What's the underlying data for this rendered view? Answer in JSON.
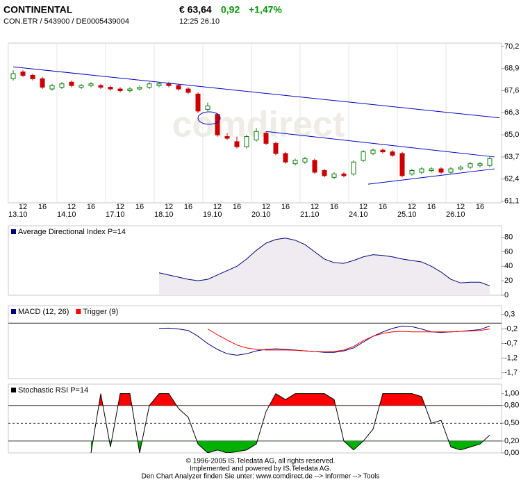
{
  "header": {
    "name": "CONTINENTAL",
    "ids": "CON.ETR / 543900 / DE0005439004",
    "price": "€ 63,64",
    "change": "0,92",
    "change_pct": "+1,47%",
    "time": "12:25  26.10"
  },
  "watermark": "comdirect",
  "footer": [
    "© 1996-2005 IS.Teledata AG, all rights reserved.",
    "Implemented and powered by IS.Teledata AG.",
    "Den Chart Analyzer finden Sie unter: www.comdirect.de --> Informer --> Tools"
  ],
  "chart_data": [
    {
      "type": "candlestick",
      "up_color": "#008000",
      "down_color": "#cc0000",
      "grid": false,
      "ylim": [
        61.0,
        70.4
      ],
      "yticks": [
        {
          "value": 70.2,
          "label": "70,2"
        },
        {
          "value": 68.9,
          "label": "68,9"
        },
        {
          "value": 67.6,
          "label": "67,6"
        },
        {
          "value": 66.3,
          "label": "66,3"
        },
        {
          "value": 65.0,
          "label": "65,0"
        },
        {
          "value": 63.7,
          "label": "63,7"
        },
        {
          "value": 62.4,
          "label": "62,4"
        },
        {
          "value": 61.1,
          "label": "61,1"
        }
      ],
      "xticks": [
        {
          "value": 1,
          "label": "12"
        },
        {
          "value": 3,
          "label": "16"
        },
        {
          "value": 6,
          "label": "12"
        },
        {
          "value": 8,
          "label": "16"
        },
        {
          "value": 11,
          "label": "12"
        },
        {
          "value": 13,
          "label": "16"
        },
        {
          "value": 16,
          "label": "12"
        },
        {
          "value": 18,
          "label": "16"
        },
        {
          "value": 21,
          "label": "12"
        },
        {
          "value": 23,
          "label": "16"
        },
        {
          "value": 26,
          "label": "12"
        },
        {
          "value": 28,
          "label": "16"
        },
        {
          "value": 31,
          "label": "12"
        },
        {
          "value": 33,
          "label": "16"
        },
        {
          "value": 36,
          "label": "12"
        },
        {
          "value": 38,
          "label": "16"
        },
        {
          "value": 41,
          "label": "12"
        },
        {
          "value": 43,
          "label": "16"
        },
        {
          "value": 46,
          "label": "12"
        },
        {
          "value": 48,
          "label": "16"
        }
      ],
      "date_ticks": [
        {
          "value": -0.5,
          "label": "13.10"
        },
        {
          "value": 4.5,
          "label": "14.10"
        },
        {
          "value": 9.5,
          "label": "17.10"
        },
        {
          "value": 14.5,
          "label": "18.10"
        },
        {
          "value": 19.5,
          "label": "19.10"
        },
        {
          "value": 24.5,
          "label": "20.10"
        },
        {
          "value": 29.5,
          "label": "21.10"
        },
        {
          "value": 34.5,
          "label": "24.10"
        },
        {
          "value": 39.5,
          "label": "25.10"
        },
        {
          "value": 44.5,
          "label": "26.10"
        }
      ],
      "open": [
        68.3,
        68.7,
        68.5,
        68.3,
        67.7,
        67.8,
        68.1,
        67.8,
        67.9,
        67.9,
        67.8,
        67.7,
        67.6,
        67.7,
        67.8,
        67.9,
        68.0,
        67.9,
        67.7,
        67.4,
        66.5,
        66.2,
        64.9,
        64.6,
        64.3,
        64.7,
        65.1,
        64.5,
        63.9,
        63.3,
        63.4,
        63.5,
        62.9,
        62.5,
        62.7,
        62.7,
        63.5,
        63.9,
        64.1,
        64.0,
        63.9,
        62.7,
        62.8,
        62.9,
        63.0,
        62.8,
        63.0,
        63.1,
        63.2,
        63.2
      ],
      "high": [
        68.8,
        68.8,
        68.6,
        68.4,
        68.0,
        68.1,
        68.2,
        68.0,
        68.1,
        68.0,
        67.9,
        67.8,
        67.8,
        67.9,
        68.1,
        68.1,
        68.1,
        68.0,
        67.8,
        67.5,
        66.9,
        66.3,
        65.1,
        64.9,
        65.0,
        65.4,
        65.2,
        64.6,
        64.0,
        63.6,
        63.7,
        63.6,
        63.0,
        62.8,
        62.8,
        63.5,
        64.1,
        64.2,
        64.2,
        64.1,
        64.0,
        63.0,
        63.1,
        63.1,
        63.1,
        63.1,
        63.2,
        63.4,
        63.4,
        63.7
      ],
      "low": [
        68.2,
        68.4,
        68.2,
        67.7,
        67.6,
        67.7,
        67.8,
        67.7,
        67.8,
        67.7,
        67.6,
        67.5,
        67.5,
        67.6,
        67.7,
        67.8,
        67.8,
        67.6,
        67.4,
        66.3,
        66.4,
        64.9,
        64.7,
        64.2,
        64.2,
        64.6,
        64.4,
        63.8,
        63.3,
        63.2,
        63.3,
        62.7,
        62.5,
        62.4,
        62.5,
        62.6,
        63.4,
        63.8,
        63.9,
        63.7,
        62.5,
        62.6,
        62.7,
        62.8,
        62.7,
        62.7,
        62.9,
        63.0,
        63.1,
        63.1
      ],
      "close": [
        68.6,
        68.5,
        68.3,
        67.8,
        67.9,
        68.0,
        67.9,
        67.9,
        68.0,
        67.8,
        67.7,
        67.6,
        67.7,
        67.8,
        68.0,
        68.0,
        67.9,
        67.7,
        67.5,
        66.4,
        66.7,
        65.0,
        64.8,
        64.3,
        64.9,
        65.2,
        64.5,
        63.9,
        63.4,
        63.5,
        63.6,
        62.8,
        62.6,
        62.7,
        62.6,
        63.4,
        64.0,
        64.1,
        64.0,
        63.8,
        62.6,
        62.9,
        63.0,
        63.0,
        62.8,
        63.0,
        63.1,
        63.3,
        63.3,
        63.6
      ],
      "trendline_color": "#0000cc",
      "trendlines": [
        {
          "points": [
            [
              0,
              69.0
            ],
            [
              50,
              66.0
            ]
          ]
        },
        {
          "points": [
            [
              26,
              65.2
            ],
            [
              49.5,
              63.7
            ]
          ]
        },
        {
          "points": [
            [
              36.5,
              62.1
            ],
            [
              49.5,
              63.0
            ]
          ]
        }
      ]
    },
    {
      "type": "line",
      "title": "Average Directional Index P=14",
      "title_color": "#000080",
      "ylim": [
        0,
        96
      ],
      "yticks": [
        80,
        60,
        40,
        20,
        0
      ],
      "series": [
        {
          "color": "#000080",
          "fill": "#efebf1",
          "values": [
            null,
            null,
            null,
            null,
            null,
            null,
            null,
            null,
            null,
            null,
            null,
            null,
            null,
            null,
            null,
            31,
            28,
            25,
            22,
            20,
            22,
            28,
            34,
            40,
            50,
            62,
            72,
            77,
            79,
            76,
            70,
            60,
            50,
            45,
            44,
            48,
            53,
            56,
            55,
            53,
            50,
            48,
            46,
            40,
            32,
            22,
            17,
            18,
            18,
            13
          ]
        }
      ]
    },
    {
      "type": "line",
      "ylim": [
        -1.9,
        0.6
      ],
      "yticks": [
        {
          "value": 0.3,
          "label": "0,3"
        },
        {
          "value": -0.2,
          "label": "-0,2"
        },
        {
          "value": -0.7,
          "label": "-0,7"
        },
        {
          "value": -1.2,
          "label": "-1,2"
        },
        {
          "value": -1.7,
          "label": "-1,7"
        }
      ],
      "reference_lines": [
        {
          "value": 0,
          "style": "solid"
        }
      ],
      "series": [
        {
          "name": "MACD (12, 26)",
          "color": "#000080",
          "values": [
            null,
            null,
            null,
            null,
            null,
            null,
            null,
            null,
            null,
            null,
            null,
            null,
            null,
            null,
            null,
            -0.18,
            -0.17,
            -0.2,
            -0.25,
            -0.45,
            -0.7,
            -0.9,
            -1.05,
            -1.1,
            -1.05,
            -0.95,
            -0.9,
            -0.88,
            -0.9,
            -0.92,
            -0.95,
            -0.97,
            -1.0,
            -1.0,
            -0.95,
            -0.85,
            -0.65,
            -0.45,
            -0.3,
            -0.18,
            -0.1,
            -0.12,
            -0.2,
            -0.3,
            -0.32,
            -0.3,
            -0.28,
            -0.25,
            -0.22,
            -0.1
          ]
        },
        {
          "name": "Trigger (9)",
          "color": "#ff0000",
          "values": [
            null,
            null,
            null,
            null,
            null,
            null,
            null,
            null,
            null,
            null,
            null,
            null,
            null,
            null,
            null,
            null,
            null,
            null,
            null,
            null,
            -0.2,
            -0.4,
            -0.58,
            -0.75,
            -0.85,
            -0.9,
            -0.92,
            -0.92,
            -0.92,
            -0.93,
            -0.95,
            -0.97,
            -0.98,
            -0.97,
            -0.92,
            -0.8,
            -0.6,
            -0.45,
            -0.35,
            -0.3,
            -0.28,
            -0.3,
            -0.3,
            -0.3,
            -0.3,
            -0.3,
            -0.28,
            -0.27,
            -0.25,
            -0.2
          ]
        }
      ]
    },
    {
      "type": "line",
      "title": "Stochastic RSI P=14",
      "title_color": "#000000",
      "ylim": [
        0,
        1.16
      ],
      "yticks": [
        {
          "value": 1,
          "label": "1,00"
        },
        {
          "value": 0.8,
          "label": "0,80"
        },
        {
          "value": 0.5,
          "label": "0,50"
        },
        {
          "value": 0.2,
          "label": "0,20"
        },
        {
          "value": 0,
          "label": "0,00"
        }
      ],
      "reference_lines": [
        {
          "value": 0.8,
          "style": "solid"
        },
        {
          "value": 0.5,
          "style": "dashed"
        },
        {
          "value": 0.2,
          "style": "solid"
        }
      ],
      "fills": [
        {
          "level": 0.8,
          "side": "above",
          "color": "#ff0000"
        },
        {
          "level": 0.2,
          "side": "below",
          "color": "#00b000"
        }
      ],
      "series": [
        {
          "color": "#000000",
          "values": [
            null,
            null,
            null,
            null,
            null,
            null,
            null,
            null,
            0.0,
            1.0,
            0.1,
            1.0,
            1.0,
            0.0,
            0.8,
            1.0,
            1.0,
            0.75,
            0.6,
            0.15,
            0.0,
            0.05,
            0.0,
            0.02,
            0.05,
            0.15,
            0.7,
            1.0,
            0.9,
            1.0,
            1.0,
            1.0,
            1.0,
            0.9,
            0.2,
            0.05,
            0.2,
            0.4,
            1.0,
            1.0,
            1.0,
            1.0,
            0.95,
            0.5,
            0.55,
            0.1,
            0.05,
            0.1,
            0.15,
            0.3
          ]
        }
      ]
    }
  ]
}
